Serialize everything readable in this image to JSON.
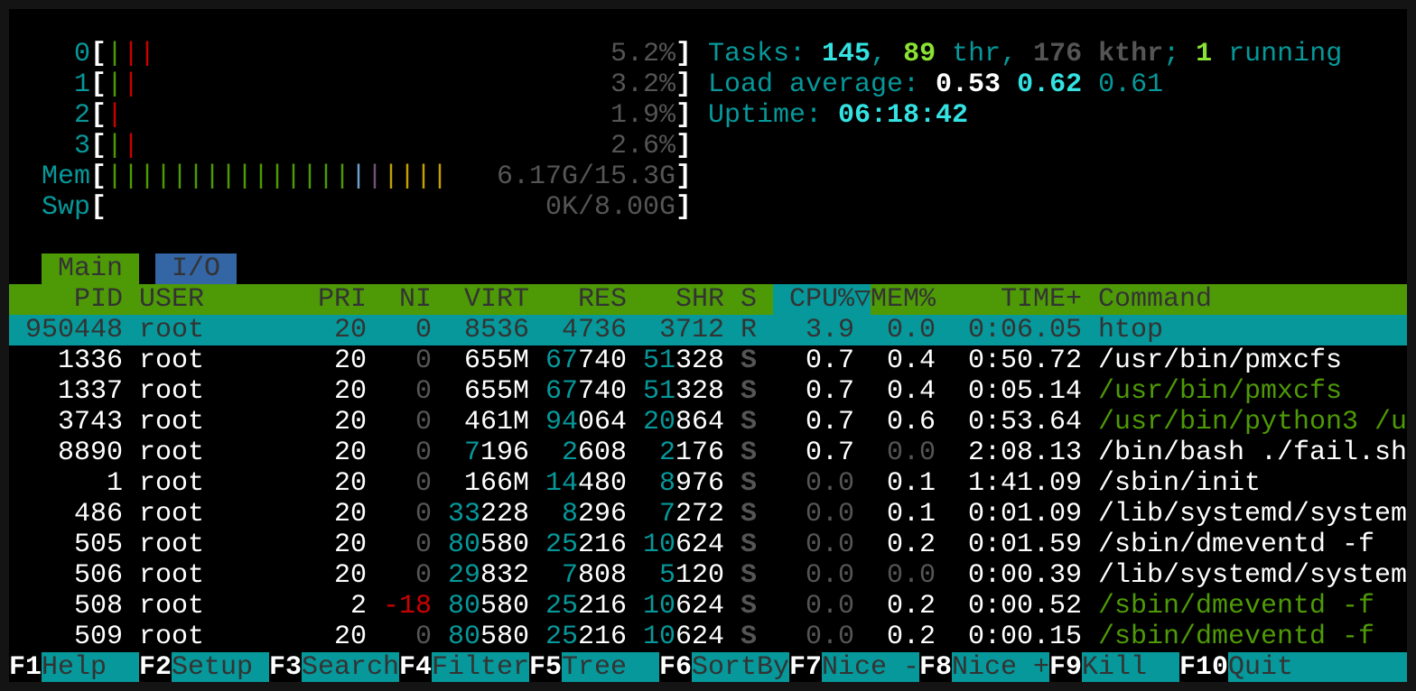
{
  "colors": {
    "accent_green": "#4e9a06",
    "accent_cyan": "#06989a",
    "tab_blue": "#3465a4",
    "bright_cyan": "#34e2e2",
    "bright_green": "#8ae234",
    "red": "#cc0000"
  },
  "meters": {
    "cpus": [
      {
        "label": "0",
        "value": "5.2%",
        "bars": [
          "green",
          "red",
          "red"
        ]
      },
      {
        "label": "1",
        "value": "3.2%",
        "bars": [
          "green",
          "red"
        ]
      },
      {
        "label": "2",
        "value": "1.9%",
        "bars": [
          "red"
        ]
      },
      {
        "label": "3",
        "value": "2.6%",
        "bars": [
          "green",
          "red"
        ]
      }
    ],
    "mem": {
      "label": "Mem",
      "value": "6.17G/15.3G",
      "bars": [
        "green",
        "green",
        "green",
        "green",
        "green",
        "green",
        "green",
        "green",
        "green",
        "green",
        "green",
        "green",
        "green",
        "green",
        "green",
        "blue",
        "purple",
        "orange",
        "orange",
        "orange",
        "orange"
      ]
    },
    "swap": {
      "label": "Swp",
      "value": "0K/8.00G",
      "bars": []
    }
  },
  "info": {
    "tasks": [
      {
        "t": "Tasks: ",
        "c": "cyan"
      },
      {
        "t": "145",
        "c": "bcyan"
      },
      {
        "t": ", ",
        "c": "cyan"
      },
      {
        "t": "89",
        "c": "bgreen"
      },
      {
        "t": " thr, ",
        "c": "cyan"
      },
      {
        "t": "176 kthr",
        "c": "bgray"
      },
      {
        "t": "; ",
        "c": "cyan"
      },
      {
        "t": "1",
        "c": "bgreen"
      },
      {
        "t": " running",
        "c": "cyan"
      }
    ],
    "load": [
      {
        "t": "Load average: ",
        "c": "cyan"
      },
      {
        "t": "0.53",
        "c": "bwhite"
      },
      {
        "t": " ",
        "c": "cyan"
      },
      {
        "t": "0.62",
        "c": "bcyan"
      },
      {
        "t": " ",
        "c": "cyan"
      },
      {
        "t": "0.61",
        "c": "cyan"
      }
    ],
    "uptime": [
      {
        "t": "Uptime: ",
        "c": "cyan"
      },
      {
        "t": "06:18:42",
        "c": "bcyan"
      }
    ]
  },
  "tabs": [
    {
      "label": "Main",
      "active": true
    },
    {
      "label": "I/O",
      "active": false
    }
  ],
  "header": {
    "pid": "PID",
    "user": "USER",
    "pri": "PRI",
    "ni": "NI",
    "virt": "VIRT",
    "res": "RES",
    "shr": "SHR",
    "s": "S",
    "cpu": "CPU%",
    "sort_indicator": "▽",
    "mem": "MEM%",
    "time": "TIME+",
    "command": "Command"
  },
  "processes": [
    {
      "pid": "950448",
      "user": "root",
      "pri": "20",
      "ni": "0",
      "virt": "8536",
      "res": "4736",
      "shr": "3712",
      "s": "R",
      "cpu": "3.9",
      "mem": "0.0",
      "time": "0:06.05",
      "command": "htop",
      "thread": false,
      "selected": true
    },
    {
      "pid": "1336",
      "user": "root",
      "pri": "20",
      "ni": "0",
      "virt": "655M",
      "res": "67740",
      "shr": "51328",
      "s": "S",
      "cpu": "0.7",
      "mem": "0.4",
      "time": "0:50.72",
      "command": "/usr/bin/pmxcfs",
      "thread": false
    },
    {
      "pid": "1337",
      "user": "root",
      "pri": "20",
      "ni": "0",
      "virt": "655M",
      "res": "67740",
      "shr": "51328",
      "s": "S",
      "cpu": "0.7",
      "mem": "0.4",
      "time": "0:05.14",
      "command": "/usr/bin/pmxcfs",
      "thread": true
    },
    {
      "pid": "3743",
      "user": "root",
      "pri": "20",
      "ni": "0",
      "virt": "461M",
      "res": "94064",
      "shr": "20864",
      "s": "S",
      "cpu": "0.7",
      "mem": "0.6",
      "time": "0:53.64",
      "command": "/usr/bin/python3 /u",
      "thread": true
    },
    {
      "pid": "8890",
      "user": "root",
      "pri": "20",
      "ni": "0",
      "virt": "7196",
      "res": "2608",
      "shr": "2176",
      "s": "S",
      "cpu": "0.7",
      "mem": "0.0",
      "time": "2:08.13",
      "command": "/bin/bash ./fail.sh",
      "thread": false
    },
    {
      "pid": "1",
      "user": "root",
      "pri": "20",
      "ni": "0",
      "virt": "166M",
      "res": "14480",
      "shr": "8976",
      "s": "S",
      "cpu": "0.0",
      "mem": "0.1",
      "time": "1:41.09",
      "command": "/sbin/init",
      "thread": false
    },
    {
      "pid": "486",
      "user": "root",
      "pri": "20",
      "ni": "0",
      "virt": "33228",
      "res": "8296",
      "shr": "7272",
      "s": "S",
      "cpu": "0.0",
      "mem": "0.1",
      "time": "0:01.09",
      "command": "/lib/systemd/system",
      "thread": false
    },
    {
      "pid": "505",
      "user": "root",
      "pri": "20",
      "ni": "0",
      "virt": "80580",
      "res": "25216",
      "shr": "10624",
      "s": "S",
      "cpu": "0.0",
      "mem": "0.2",
      "time": "0:01.59",
      "command": "/sbin/dmeventd -f",
      "thread": false
    },
    {
      "pid": "506",
      "user": "root",
      "pri": "20",
      "ni": "0",
      "virt": "29832",
      "res": "7808",
      "shr": "5120",
      "s": "S",
      "cpu": "0.0",
      "mem": "0.0",
      "time": "0:00.39",
      "command": "/lib/systemd/system",
      "thread": false
    },
    {
      "pid": "508",
      "user": "root",
      "pri": "2",
      "ni": "-18",
      "virt": "80580",
      "res": "25216",
      "shr": "10624",
      "s": "S",
      "cpu": "0.0",
      "mem": "0.2",
      "time": "0:00.52",
      "command": "/sbin/dmeventd -f",
      "thread": true
    },
    {
      "pid": "509",
      "user": "root",
      "pri": "20",
      "ni": "0",
      "virt": "80580",
      "res": "25216",
      "shr": "10624",
      "s": "S",
      "cpu": "0.0",
      "mem": "0.2",
      "time": "0:00.15",
      "command": "/sbin/dmeventd -f",
      "thread": true
    }
  ],
  "function_bar": [
    {
      "key": "F1",
      "label": "Help"
    },
    {
      "key": "F2",
      "label": "Setup"
    },
    {
      "key": "F3",
      "label": "Search"
    },
    {
      "key": "F4",
      "label": "Filter"
    },
    {
      "key": "F5",
      "label": "Tree"
    },
    {
      "key": "F6",
      "label": "SortBy"
    },
    {
      "key": "F7",
      "label": "Nice -"
    },
    {
      "key": "F8",
      "label": "Nice +"
    },
    {
      "key": "F9",
      "label": "Kill"
    },
    {
      "key": "F10",
      "label": "Quit"
    }
  ]
}
